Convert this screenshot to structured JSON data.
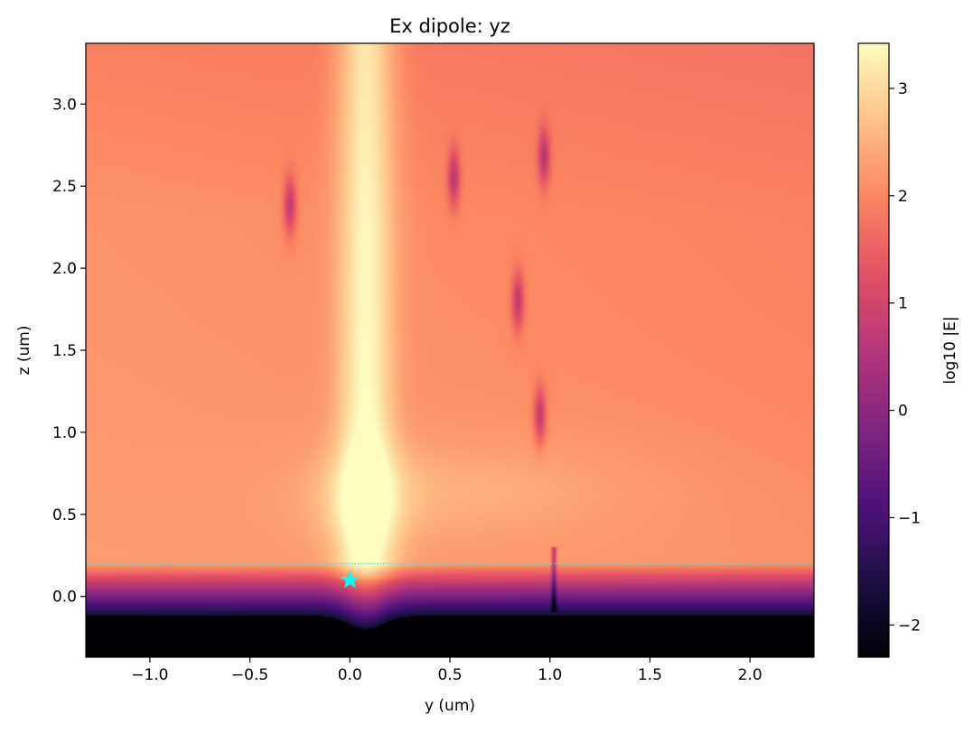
{
  "chart_data": {
    "type": "heatmap",
    "title": "Ex dipole: yz",
    "xlabel": "y (um)",
    "ylabel": "z (um)",
    "xlim": [
      -1.32,
      2.32
    ],
    "ylim": [
      -0.37,
      3.37
    ],
    "x_ticks": [
      -1.0,
      -0.5,
      0.0,
      0.5,
      1.0,
      1.5,
      2.0
    ],
    "x_tick_labels": [
      "−1.0",
      "−0.5",
      "0.0",
      "0.5",
      "1.0",
      "1.5",
      "2.0"
    ],
    "y_ticks": [
      0.0,
      0.5,
      1.0,
      1.5,
      2.0,
      2.5,
      3.0
    ],
    "y_tick_labels": [
      "0.0",
      "0.5",
      "1.0",
      "1.5",
      "2.0",
      "2.5",
      "3.0"
    ],
    "colormap": "magma",
    "colorbar": {
      "label": "log10 |E|",
      "min": -2.3,
      "max": 3.42,
      "ticks": [
        -2,
        -1,
        0,
        1,
        2,
        3
      ],
      "tick_labels": [
        "−2",
        "−1",
        "0",
        "1",
        "2",
        "3"
      ]
    },
    "field_features": {
      "beam_center_y": 0.08,
      "beam_peak_log10E": 3.3,
      "background_log10E": 2.0,
      "substrate_edge_z": -0.12,
      "substrate_log10E": -2.3,
      "nulls": [
        {
          "y": -0.3,
          "z": 2.38
        },
        {
          "y": 0.52,
          "z": 2.55
        },
        {
          "y": 0.97,
          "z": 2.68
        },
        {
          "y": 0.84,
          "z": 1.8
        },
        {
          "y": 0.95,
          "z": 1.1
        }
      ]
    },
    "interface_line": {
      "z": 0.2,
      "color": "#5fd3d3",
      "style": "dotted"
    },
    "source_marker": {
      "y": 0.0,
      "z": 0.1,
      "shape": "star",
      "color": "#00ffff"
    }
  }
}
